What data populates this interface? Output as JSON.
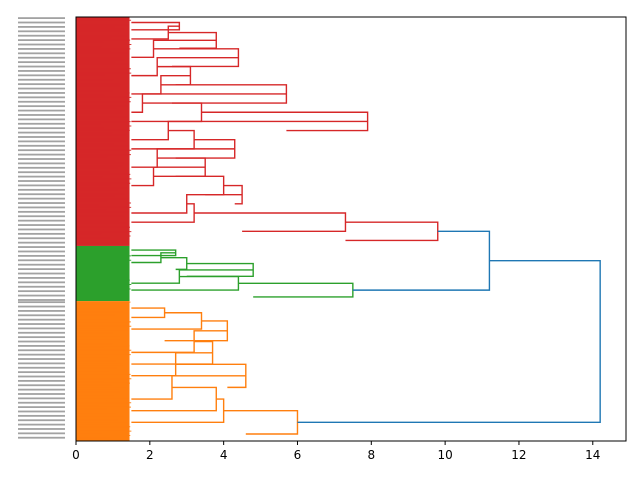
{
  "chart_data": {
    "type": "dendrogram",
    "orientation": "horizontal",
    "xlabel": "",
    "ylabel": "",
    "title": "",
    "xlim": [
      0,
      14.9
    ],
    "x_ticks": [
      0,
      2,
      4,
      6,
      8,
      10,
      12,
      14
    ],
    "x_tick_labels": [
      "0",
      "2",
      "4",
      "6",
      "8",
      "10",
      "12",
      "14"
    ],
    "grid": false,
    "legend": "none",
    "colors": {
      "cluster_red": "#d62728",
      "cluster_green": "#2ca02c",
      "cluster_orange": "#ff7f0e",
      "above_threshold": "#1f77b4"
    },
    "clusters": [
      {
        "color": "cluster_red",
        "share_of_leaves": 0.54,
        "merges": [
          {
            "left": 1.5,
            "right": 2.8
          },
          {
            "left": 1.5,
            "right": 2.5
          },
          {
            "left": 2.8,
            "right": 3.8
          },
          {
            "left": 1.5,
            "right": 2.1
          },
          {
            "left": 2.6,
            "right": 4.4
          },
          {
            "left": 1.5,
            "right": 2.2
          },
          {
            "left": 2.7,
            "right": 3.1
          },
          {
            "left": 1.5,
            "right": 2.3
          },
          {
            "left": 2.6,
            "right": 5.7
          },
          {
            "left": 1.5,
            "right": 1.8
          },
          {
            "left": 1.5,
            "right": 3.4
          },
          {
            "left": 5.7,
            "right": 7.9
          },
          {
            "left": 1.5,
            "right": 2.5
          },
          {
            "left": 1.5,
            "right": 3.2
          },
          {
            "left": 2.7,
            "right": 4.3
          },
          {
            "left": 1.5,
            "right": 2.2
          },
          {
            "left": 2.7,
            "right": 3.5
          },
          {
            "left": 1.5,
            "right": 2.1
          },
          {
            "left": 3.5,
            "right": 4.0
          },
          {
            "left": 4.3,
            "right": 4.5
          },
          {
            "left": 1.5,
            "right": 3.0
          },
          {
            "left": 1.5,
            "right": 3.2
          },
          {
            "left": 4.5,
            "right": 7.3
          },
          {
            "left": 7.3,
            "right": 9.8
          }
        ]
      },
      {
        "color": "cluster_green",
        "share_of_leaves": 0.13,
        "merges": [
          {
            "left": 1.5,
            "right": 2.7
          },
          {
            "left": 1.5,
            "right": 2.3
          },
          {
            "left": 2.7,
            "right": 3.0
          },
          {
            "left": 3.0,
            "right": 4.8
          },
          {
            "left": 1.5,
            "right": 2.8
          },
          {
            "left": 1.5,
            "right": 4.4
          },
          {
            "left": 4.8,
            "right": 7.5
          }
        ]
      },
      {
        "color": "cluster_orange",
        "share_of_leaves": 0.33,
        "merges": [
          {
            "left": 1.5,
            "right": 2.4
          },
          {
            "left": 1.5,
            "right": 3.4
          },
          {
            "left": 2.4,
            "right": 4.1
          },
          {
            "left": 1.5,
            "right": 3.2
          },
          {
            "left": 1.5,
            "right": 3.7
          },
          {
            "left": 1.5,
            "right": 2.7
          },
          {
            "left": 4.1,
            "right": 4.6
          },
          {
            "left": 1.5,
            "right": 2.6
          },
          {
            "left": 1.5,
            "right": 3.8
          },
          {
            "left": 1.5,
            "right": 4.0
          },
          {
            "left": 4.6,
            "right": 6.0
          }
        ]
      }
    ],
    "top_merges": [
      {
        "join": "red + green",
        "height": 11.2
      },
      {
        "join": "(red + green) + orange",
        "height": 14.2
      }
    ]
  }
}
